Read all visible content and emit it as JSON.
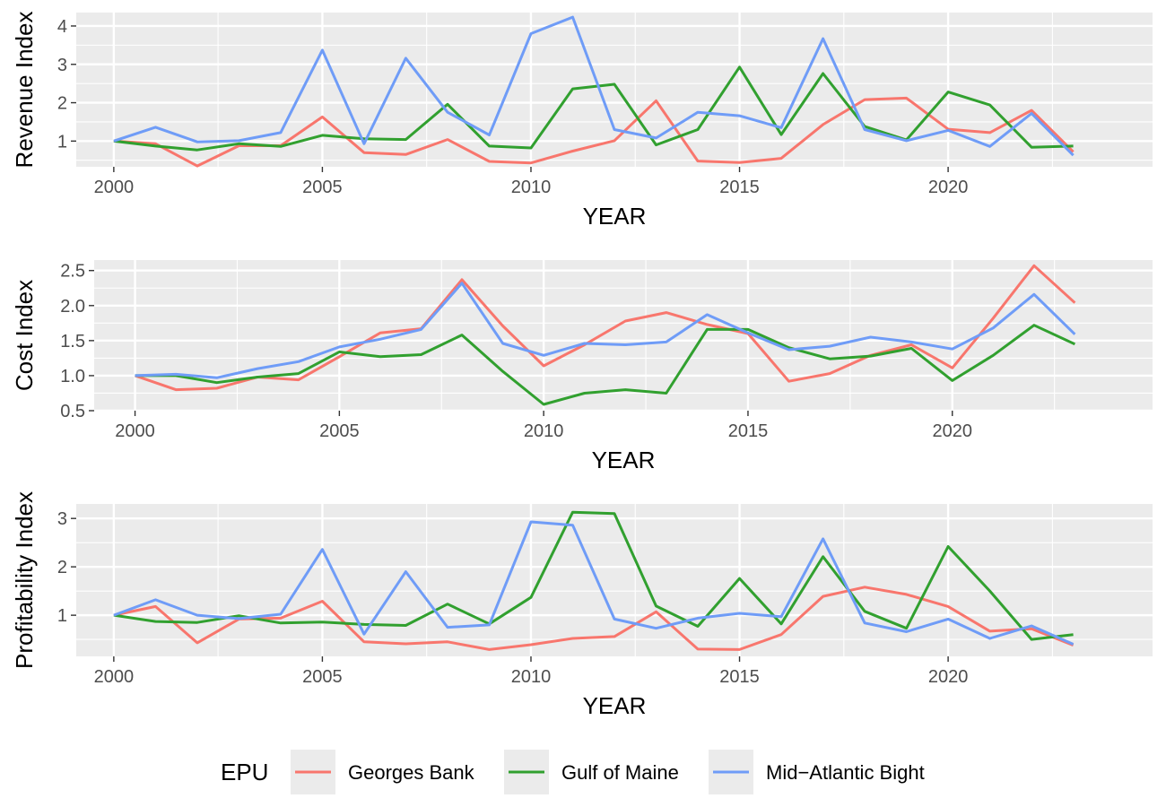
{
  "legend": {
    "title": "EPU",
    "entries": [
      "Georges Bank",
      "Gulf of Maine",
      "Mid−Atlantic Bight"
    ]
  },
  "colors": {
    "Georges Bank": "#F8766D",
    "Gulf of Maine": "#31A02F",
    "Mid−Atlantic Bight": "#6F9CF7"
  },
  "chart_data": [
    {
      "type": "line",
      "xlabel": "YEAR",
      "ylabel": "Revenue Index",
      "xlim": [
        1999.1,
        2024.9
      ],
      "ylim": [
        0.33,
        4.35
      ],
      "xticks": [
        2000,
        2005,
        2010,
        2015,
        2020
      ],
      "yticks": [
        1,
        2,
        3,
        4
      ],
      "grid": true,
      "x": [
        2000,
        2001,
        2002,
        2003,
        2004,
        2005,
        2006,
        2007,
        2008,
        2009,
        2010,
        2011,
        2012,
        2013,
        2014,
        2015,
        2016,
        2017,
        2018,
        2019,
        2020,
        2021,
        2022,
        2023
      ],
      "series": [
        {
          "name": "Georges Bank",
          "values": [
            1.0,
            0.93,
            0.35,
            0.88,
            0.88,
            1.63,
            0.7,
            0.65,
            1.04,
            0.47,
            0.43,
            0.74,
            1.01,
            2.05,
            0.48,
            0.44,
            0.55,
            1.43,
            2.08,
            2.12,
            1.31,
            1.22,
            1.8,
            0.72
          ]
        },
        {
          "name": "Gulf of Maine",
          "values": [
            1.0,
            0.87,
            0.77,
            0.93,
            0.86,
            1.15,
            1.06,
            1.04,
            1.96,
            0.87,
            0.82,
            2.36,
            2.48,
            0.9,
            1.3,
            2.93,
            1.17,
            2.76,
            1.38,
            1.03,
            2.28,
            1.94,
            0.84,
            0.87
          ]
        },
        {
          "name": "Mid−Atlantic Bight",
          "values": [
            1.0,
            1.36,
            0.98,
            1.01,
            1.22,
            3.37,
            0.93,
            3.16,
            1.75,
            1.16,
            3.8,
            4.23,
            1.3,
            1.08,
            1.75,
            1.66,
            1.35,
            3.67,
            1.3,
            1.01,
            1.28,
            0.86,
            1.72,
            0.63
          ]
        }
      ]
    },
    {
      "type": "line",
      "xlabel": "YEAR",
      "ylabel": "Cost Index",
      "xlim": [
        1999.0,
        2024.9
      ],
      "ylim": [
        0.5,
        2.65
      ],
      "xticks": [
        2000,
        2005,
        2010,
        2015,
        2020
      ],
      "yticks": [
        "0.5",
        "1.0",
        "1.5",
        "2.0",
        "2.5"
      ],
      "grid": true,
      "x": [
        2000,
        2001,
        2002,
        2003,
        2004,
        2005,
        2006,
        2007,
        2008,
        2009,
        2010,
        2011,
        2012,
        2013,
        2014,
        2015,
        2016,
        2017,
        2018,
        2019,
        2020,
        2021,
        2022,
        2023
      ],
      "series": [
        {
          "name": "Georges Bank",
          "values": [
            1.0,
            0.8,
            0.82,
            0.98,
            0.94,
            1.27,
            1.61,
            1.67,
            2.37,
            1.71,
            1.14,
            1.44,
            1.78,
            1.9,
            1.73,
            1.6,
            0.92,
            1.03,
            1.29,
            1.44,
            1.11,
            1.82,
            2.57,
            2.04
          ]
        },
        {
          "name": "Gulf of Maine",
          "values": [
            1.0,
            1.0,
            0.9,
            0.98,
            1.03,
            1.34,
            1.27,
            1.3,
            1.58,
            1.06,
            0.59,
            0.75,
            0.8,
            0.75,
            1.66,
            1.66,
            1.4,
            1.24,
            1.28,
            1.39,
            0.93,
            1.29,
            1.72,
            1.45
          ]
        },
        {
          "name": "Mid−Atlantic Bight",
          "values": [
            1.0,
            1.02,
            0.97,
            1.1,
            1.2,
            1.41,
            1.52,
            1.66,
            2.32,
            1.46,
            1.29,
            1.46,
            1.44,
            1.48,
            1.87,
            1.61,
            1.37,
            1.42,
            1.55,
            1.48,
            1.38,
            1.68,
            2.16,
            1.59
          ]
        }
      ]
    },
    {
      "type": "line",
      "xlabel": "YEAR",
      "ylabel": "Profitability Index",
      "xlim": [
        1999.1,
        2024.9
      ],
      "ylim": [
        0.15,
        3.3
      ],
      "xticks": [
        2000,
        2005,
        2010,
        2015,
        2020
      ],
      "yticks": [
        1,
        2,
        3
      ],
      "grid": true,
      "x": [
        2000,
        2001,
        2002,
        2003,
        2004,
        2005,
        2006,
        2007,
        2008,
        2009,
        2010,
        2011,
        2012,
        2013,
        2014,
        2015,
        2016,
        2017,
        2018,
        2019,
        2020,
        2021,
        2022,
        2023
      ],
      "series": [
        {
          "name": "Georges Bank",
          "values": [
            1.0,
            1.18,
            0.43,
            0.92,
            0.94,
            1.29,
            0.45,
            0.41,
            0.45,
            0.29,
            0.39,
            0.52,
            0.56,
            1.07,
            0.3,
            0.29,
            0.6,
            1.39,
            1.58,
            1.43,
            1.18,
            0.67,
            0.72,
            0.38
          ]
        },
        {
          "name": "Gulf of Maine",
          "values": [
            1.0,
            0.87,
            0.85,
            0.99,
            0.84,
            0.86,
            0.81,
            0.79,
            1.23,
            0.82,
            1.37,
            3.13,
            3.1,
            1.19,
            0.77,
            1.76,
            0.82,
            2.21,
            1.08,
            0.73,
            2.42,
            1.5,
            0.5,
            0.6
          ]
        },
        {
          "name": "Mid−Atlantic Bight",
          "values": [
            1.0,
            1.32,
            1.0,
            0.93,
            1.02,
            2.36,
            0.61,
            1.9,
            0.75,
            0.8,
            2.93,
            2.86,
            0.92,
            0.73,
            0.94,
            1.04,
            0.97,
            2.58,
            0.84,
            0.66,
            0.92,
            0.52,
            0.78,
            0.4
          ]
        }
      ]
    }
  ]
}
